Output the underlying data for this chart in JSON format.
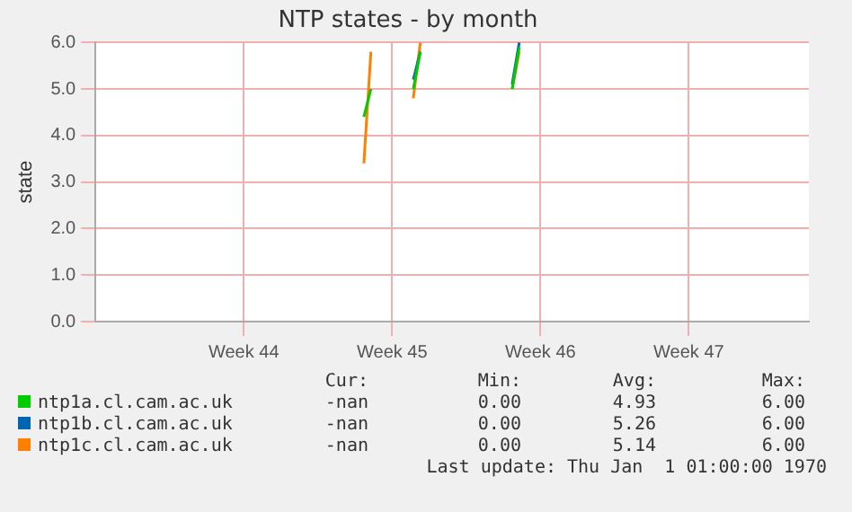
{
  "chart_data": {
    "type": "line",
    "title": "NTP states - by month",
    "ylabel": "state",
    "categories": [
      null,
      null,
      null,
      null,
      null,
      null,
      null,
      null,
      null,
      null,
      null,
      null,
      null,
      null,
      null,
      null,
      null,
      null,
      null,
      null,
      null,
      "Week 44",
      null,
      null,
      null,
      null,
      null,
      null,
      null,
      null,
      null,
      null,
      null,
      null,
      null,
      null,
      null,
      null,
      null,
      null,
      null,
      null,
      "Week 45",
      null,
      null,
      null,
      null,
      null,
      null,
      null,
      null,
      null,
      null,
      null,
      null,
      null,
      null,
      null,
      null,
      null,
      null,
      null,
      null,
      "Week 46",
      null,
      null,
      null,
      null,
      null,
      null,
      null,
      null,
      null,
      null,
      null,
      null,
      null,
      null,
      null,
      null,
      null,
      null,
      null,
      null,
      "Week 47",
      null,
      null,
      null,
      null,
      null,
      null,
      null,
      null,
      null,
      null,
      null,
      null,
      null,
      null,
      null,
      null,
      null
    ],
    "ylim": [
      0,
      6
    ],
    "yticks": [
      {
        "value": 0,
        "label": "0.0"
      },
      {
        "value": 1,
        "label": "1.0"
      },
      {
        "value": 2,
        "label": "2.0"
      },
      {
        "value": 3,
        "label": "3.0"
      },
      {
        "value": 4,
        "label": "4.0"
      },
      {
        "value": 5,
        "label": "5.0"
      },
      {
        "value": 6,
        "label": "6.0"
      }
    ],
    "grid": true,
    "legend": "bottom",
    "marker": "none",
    "line_style": "solid",
    "series": [
      {
        "name": "ntp1a.cl.cam.ac.uk",
        "color": "#00cc00",
        "values": [
          null,
          null,
          null,
          null,
          null,
          null,
          null,
          null,
          null,
          null,
          null,
          null,
          null,
          null,
          null,
          null,
          null,
          null,
          null,
          null,
          null,
          null,
          null,
          null,
          null,
          null,
          null,
          null,
          null,
          null,
          null,
          null,
          null,
          null,
          null,
          null,
          null,
          null,
          4.4,
          5.0,
          null,
          null,
          null,
          null,
          null,
          5.0,
          5.8,
          null,
          null,
          null,
          null,
          null,
          null,
          null,
          null,
          null,
          null,
          null,
          null,
          5.0,
          5.9,
          null,
          null,
          null,
          null,
          null,
          null,
          null,
          null,
          null,
          null,
          null,
          null,
          null,
          null,
          null,
          null,
          null,
          null,
          null,
          null,
          null,
          null,
          null,
          null,
          null,
          null,
          null,
          null,
          null,
          null,
          null,
          null,
          null,
          null,
          null,
          null,
          null,
          null,
          null,
          null,
          null
        ]
      },
      {
        "name": "ntp1b.cl.cam.ac.uk",
        "color": "#0066b3",
        "values": [
          null,
          null,
          null,
          null,
          null,
          null,
          null,
          null,
          null,
          null,
          null,
          null,
          null,
          null,
          null,
          null,
          null,
          null,
          null,
          null,
          null,
          null,
          null,
          null,
          null,
          null,
          null,
          null,
          null,
          null,
          null,
          null,
          null,
          null,
          null,
          null,
          null,
          null,
          null,
          null,
          null,
          null,
          null,
          null,
          null,
          5.2,
          5.8,
          null,
          null,
          null,
          null,
          null,
          null,
          null,
          null,
          null,
          null,
          null,
          null,
          5.1,
          6.0,
          null,
          null,
          null,
          null,
          null,
          null,
          null,
          null,
          null,
          null,
          null,
          null,
          null,
          null,
          null,
          null,
          null,
          null,
          null,
          null,
          null,
          null,
          null,
          null,
          null,
          null,
          null,
          null,
          null,
          null,
          null,
          null,
          null,
          null,
          null,
          null,
          null,
          null,
          null,
          null,
          null
        ]
      },
      {
        "name": "ntp1c.cl.cam.ac.uk",
        "color": "#ff8000",
        "values": [
          null,
          null,
          null,
          null,
          null,
          null,
          null,
          null,
          null,
          null,
          null,
          null,
          null,
          null,
          null,
          null,
          null,
          null,
          null,
          null,
          null,
          null,
          null,
          null,
          null,
          null,
          null,
          null,
          null,
          null,
          null,
          null,
          null,
          null,
          null,
          null,
          null,
          null,
          3.4,
          5.8,
          null,
          null,
          null,
          null,
          null,
          4.8,
          6.0,
          null,
          null,
          null,
          null,
          null,
          null,
          null,
          null,
          null,
          null,
          null,
          null,
          5.0,
          5.8,
          null,
          null,
          null,
          null,
          null,
          null,
          null,
          null,
          null,
          null,
          null,
          null,
          null,
          null,
          null,
          null,
          null,
          null,
          null,
          null,
          null,
          null,
          null,
          null,
          null,
          null,
          null,
          null,
          null,
          null,
          null,
          null,
          null,
          null,
          null,
          null,
          null,
          null,
          null,
          null,
          null
        ]
      }
    ],
    "annotations": [
      "Cur:",
      "Min:",
      "Avg:",
      "Max:",
      "-nan",
      "0.00",
      "4.93",
      "6.00",
      "-nan",
      "0.00",
      "5.26",
      "6.00",
      "-nan",
      "0.00",
      "5.14",
      "6.00",
      "Last update: Thu Jan  1 01:00:00 1970"
    ]
  }
}
